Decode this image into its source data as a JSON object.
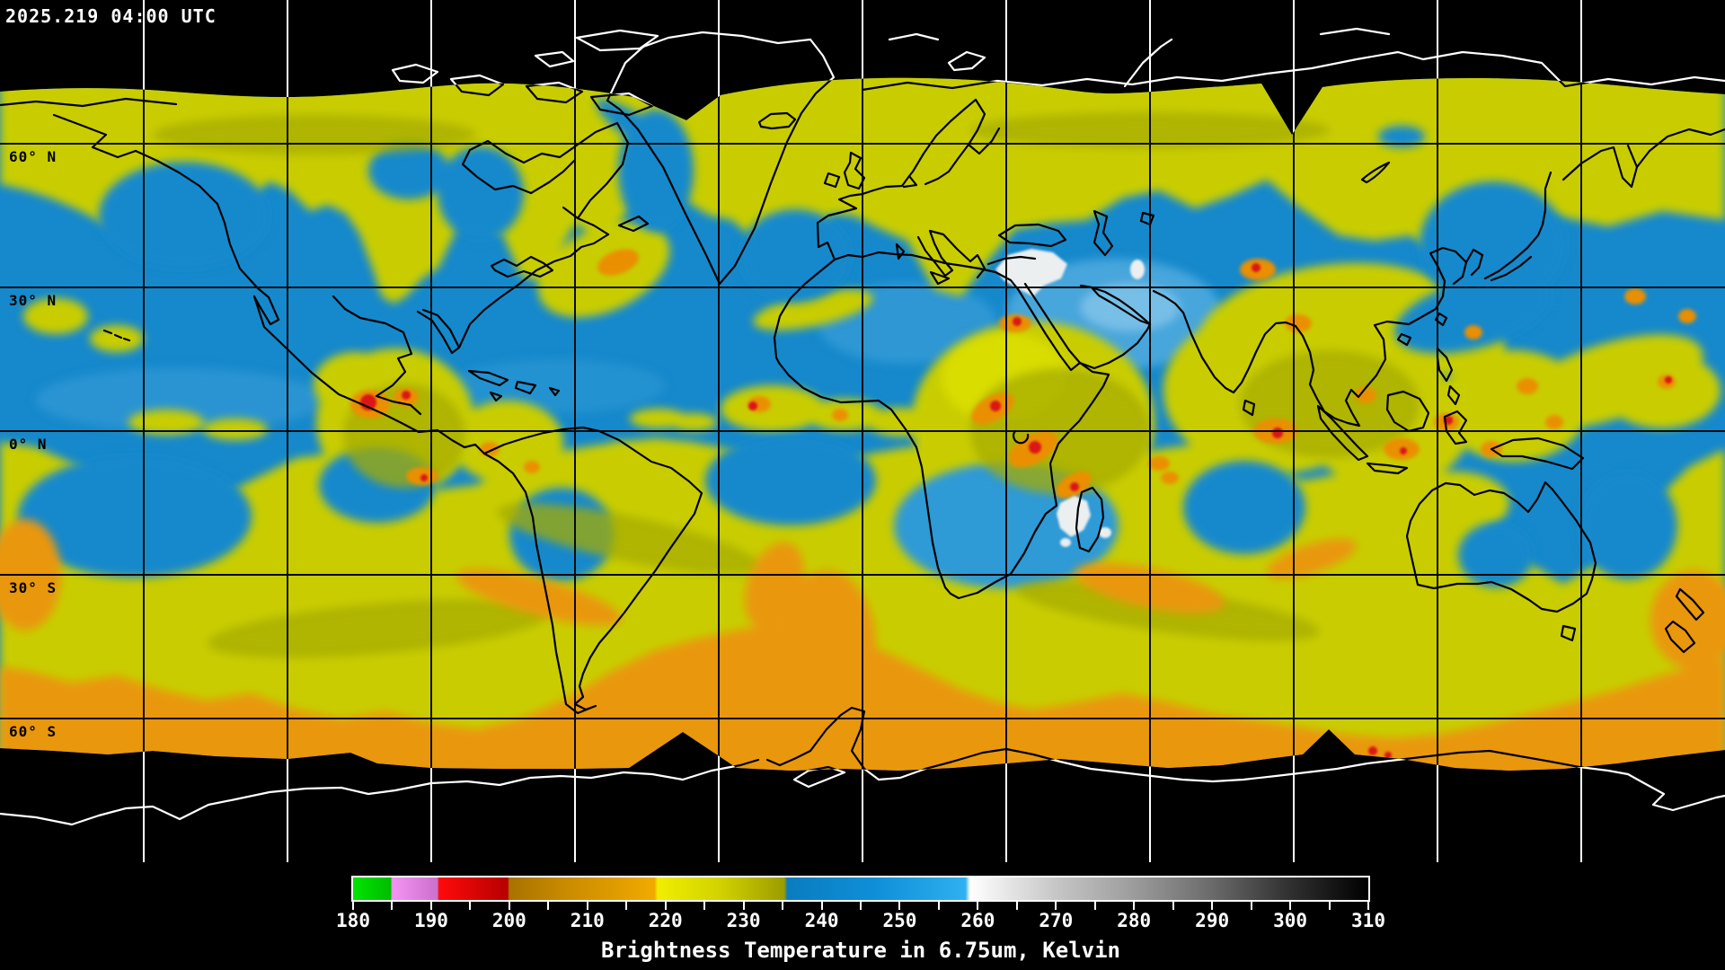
{
  "header": {
    "timestamp": "2025.219 04:00 UTC"
  },
  "map": {
    "projection": "equirectangular",
    "graticule_deg": 30,
    "latitude_labels": [
      {
        "label": "60° N",
        "lat": 60
      },
      {
        "label": "30° N",
        "lat": 30
      },
      {
        "label": "0° N",
        "lat": 0
      },
      {
        "label": "30° S",
        "lat": -30
      },
      {
        "label": "60° S",
        "lat": -60
      }
    ]
  },
  "colorbar": {
    "title": "Brightness Temperature in 6.75um, Kelvin",
    "min": 180,
    "max": 310,
    "minor_step": 5,
    "major_ticks": [
      180,
      190,
      200,
      210,
      220,
      230,
      240,
      250,
      260,
      270,
      280,
      290,
      300,
      310
    ],
    "stops": [
      {
        "kelvin": 180.0,
        "color": "#00e400"
      },
      {
        "kelvin": 184.8,
        "color": "#00bc00"
      },
      {
        "kelvin": 185.0,
        "color": "#f494f4"
      },
      {
        "kelvin": 190.8,
        "color": "#cc70cc"
      },
      {
        "kelvin": 191.0,
        "color": "#ff0a0a"
      },
      {
        "kelvin": 199.8,
        "color": "#b60000"
      },
      {
        "kelvin": 200.0,
        "color": "#a87200"
      },
      {
        "kelvin": 207.0,
        "color": "#c88a00"
      },
      {
        "kelvin": 218.6,
        "color": "#f2aa00"
      },
      {
        "kelvin": 219.0,
        "color": "#f0ee00"
      },
      {
        "kelvin": 227.0,
        "color": "#d2d200"
      },
      {
        "kelvin": 235.2,
        "color": "#9c9c00"
      },
      {
        "kelvin": 235.6,
        "color": "#0a7cc0"
      },
      {
        "kelvin": 247.0,
        "color": "#0f8fd8"
      },
      {
        "kelvin": 258.4,
        "color": "#2fb0f0"
      },
      {
        "kelvin": 259.0,
        "color": "#ffffff"
      },
      {
        "kelvin": 270.0,
        "color": "#c6c6c6"
      },
      {
        "kelvin": 280.0,
        "color": "#9c9c9c"
      },
      {
        "kelvin": 290.0,
        "color": "#6a6a6a"
      },
      {
        "kelvin": 300.0,
        "color": "#303030"
      },
      {
        "kelvin": 310.0,
        "color": "#000000"
      }
    ]
  }
}
